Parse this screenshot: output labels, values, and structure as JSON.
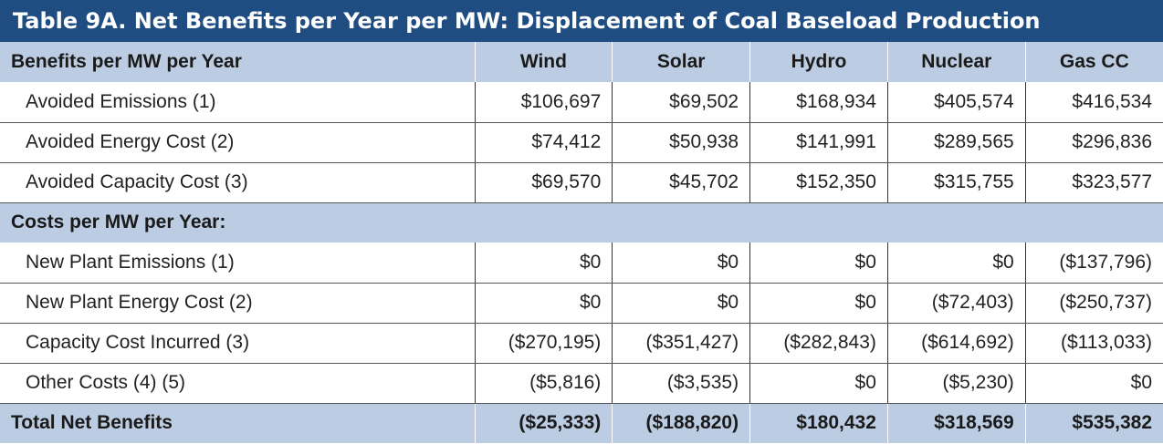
{
  "title": "Table 9A. Net Benefits per Year per MW: Displacement of Coal Baseload Production",
  "header": {
    "label": "Benefits per MW per Year",
    "columns": [
      "Wind",
      "Solar",
      "Hydro",
      "Nuclear",
      "Gas CC"
    ]
  },
  "benefits": [
    {
      "label": "Avoided Emissions (1)",
      "values": [
        "$106,697",
        "$69,502",
        "$168,934",
        "$405,574",
        "$416,534"
      ]
    },
    {
      "label": "Avoided Energy Cost (2)",
      "values": [
        "$74,412",
        "$50,938",
        "$141,991",
        "$289,565",
        "$296,836"
      ]
    },
    {
      "label": "Avoided Capacity Cost (3)",
      "values": [
        "$69,570",
        "$45,702",
        "$152,350",
        "$315,755",
        "$323,577"
      ]
    }
  ],
  "costs_header": "Costs per MW per Year:",
  "costs": [
    {
      "label": "New Plant Emissions (1)",
      "values": [
        "$0",
        "$0",
        "$0",
        "$0",
        "($137,796)"
      ]
    },
    {
      "label": "New Plant Energy Cost (2)",
      "values": [
        "$0",
        "$0",
        "$0",
        "($72,403)",
        "($250,737)"
      ]
    },
    {
      "label": "Capacity Cost Incurred (3)",
      "values": [
        "($270,195)",
        "($351,427)",
        "($282,843)",
        "($614,692)",
        "($113,033)"
      ]
    },
    {
      "label": "Other Costs (4) (5)",
      "values": [
        "($5,816)",
        "($3,535)",
        "$0",
        "($5,230)",
        "$0"
      ]
    }
  ],
  "total": {
    "label": "Total Net Benefits",
    "values": [
      "($25,333)",
      "($188,820)",
      "$180,432",
      "$318,569",
      "$535,382"
    ]
  }
}
